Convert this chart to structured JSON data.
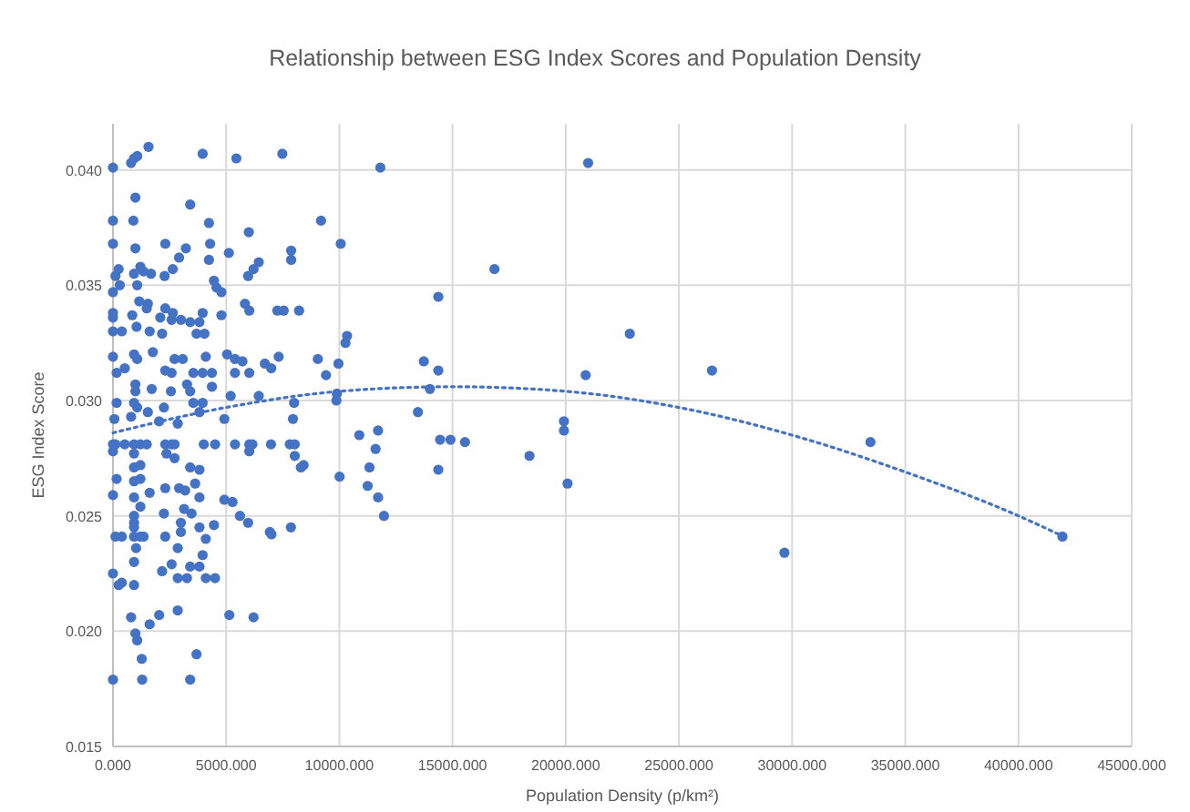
{
  "chart_data": {
    "type": "scatter",
    "title": "Relationship between ESG Index Scores and Population Density",
    "xlabel": "Population Density (p/km²)",
    "ylabel": "ESG Index Score",
    "xlim": [
      0,
      45000
    ],
    "ylim": [
      0.015,
      0.042
    ],
    "xticks": [
      {
        "value": 0,
        "label": "0.000"
      },
      {
        "value": 5000,
        "label": "5000.000"
      },
      {
        "value": 10000,
        "label": "10000.000"
      },
      {
        "value": 15000,
        "label": "15000.000"
      },
      {
        "value": 20000,
        "label": "20000.000"
      },
      {
        "value": 25000,
        "label": "25000.000"
      },
      {
        "value": 30000,
        "label": "30000.000"
      },
      {
        "value": 35000,
        "label": "35000.000"
      },
      {
        "value": 40000,
        "label": "40000.000"
      },
      {
        "value": 45000,
        "label": "45000.000"
      }
    ],
    "yticks": [
      {
        "value": 0.015,
        "label": "0.015"
      },
      {
        "value": 0.02,
        "label": "0.020"
      },
      {
        "value": 0.025,
        "label": "0.025"
      },
      {
        "value": 0.03,
        "label": "0.030"
      },
      {
        "value": 0.035,
        "label": "0.035"
      },
      {
        "value": 0.04,
        "label": "0.040"
      }
    ],
    "grid": true,
    "series": [
      {
        "color": "#4472c4",
        "marker": "circle",
        "x": [
          0,
          800,
          930,
          1070,
          1570,
          3960,
          5450,
          7480,
          990,
          3410,
          0,
          900,
          4240,
          9190,
          6000,
          0,
          2310,
          4290,
          10060,
          990,
          3220,
          5120,
          7870,
          7870,
          2920,
          4240,
          6440,
          250,
          2640,
          6210,
          1210,
          1350,
          930,
          1680,
          2280,
          5970,
          110,
          300,
          1070,
          0,
          4460,
          4570,
          4790,
          1160,
          1540,
          1490,
          2310,
          2640,
          5830,
          6020,
          7260,
          7540,
          8220,
          0,
          0,
          850,
          2090,
          2590,
          3000,
          3410,
          3820,
          4790,
          3960,
          1040,
          0,
          390,
          1620,
          2170,
          3690,
          4040,
          10340,
          0,
          930,
          1070,
          1760,
          2720,
          3080,
          4100,
          5040,
          5390,
          5720,
          6710,
          6990,
          7320,
          9050,
          9410,
          9960,
          160,
          520,
          2310,
          2590,
          3550,
          3960,
          4370,
          5390,
          6020,
          990,
          990,
          3270,
          3410,
          1710,
          2560,
          4370,
          5200,
          6440,
          9870,
          160,
          930,
          1070,
          2250,
          3960,
          3550,
          8000,
          7950,
          4920,
          3820,
          1540,
          800,
          60,
          2040,
          2860,
          0,
          110,
          520,
          930,
          1210,
          1490,
          2310,
          2590,
          2720,
          4010,
          4510,
          5390,
          6020,
          6160,
          6980,
          7810,
          8030,
          0,
          930,
          2360,
          2720,
          6020,
          8030,
          1210,
          930,
          3410,
          3820,
          8420,
          8300,
          160,
          930,
          1210,
          10010,
          2310,
          2920,
          3190,
          3630,
          1620,
          930,
          0,
          3820,
          4920,
          5280,
          1210,
          2250,
          3140,
          3470,
          930,
          930,
          5610,
          5970,
          3000,
          3820,
          4460,
          7860,
          930,
          110,
          390,
          930,
          1210,
          1350,
          2310,
          3000,
          6930,
          7000,
          4100,
          1020,
          2860,
          3960,
          930,
          2590,
          3410,
          3820,
          2170,
          0,
          2860,
          3270,
          4100,
          4510,
          250,
          390,
          930,
          800,
          2040,
          2860,
          1620,
          990,
          1070,
          5140,
          6210,
          3690,
          1270,
          0,
          1290,
          3410,
          11810,
          20990,
          16850,
          14370,
          10270,
          22830,
          13730,
          14370,
          20880,
          9890,
          14000,
          13470,
          19920,
          19920,
          10880,
          11710,
          11600,
          14450,
          14910,
          15550,
          18400,
          11330,
          14370,
          11250,
          20080,
          11710,
          11970,
          26460,
          29660,
          33460,
          41940
        ],
        "values": [
          0.0401,
          0.0403,
          0.0405,
          0.0406,
          0.041,
          0.0407,
          0.0405,
          0.0407,
          0.0388,
          0.0385,
          0.0378,
          0.0378,
          0.0377,
          0.0378,
          0.0373,
          0.0368,
          0.0368,
          0.0368,
          0.0368,
          0.0366,
          0.0366,
          0.0364,
          0.0365,
          0.0361,
          0.0362,
          0.0361,
          0.036,
          0.0357,
          0.0357,
          0.0357,
          0.0358,
          0.0356,
          0.0355,
          0.0355,
          0.0354,
          0.0354,
          0.0354,
          0.035,
          0.035,
          0.0347,
          0.0352,
          0.0349,
          0.0347,
          0.0343,
          0.0342,
          0.034,
          0.034,
          0.0338,
          0.0342,
          0.0339,
          0.0339,
          0.0339,
          0.0339,
          0.0338,
          0.0336,
          0.0337,
          0.0336,
          0.0335,
          0.0335,
          0.0334,
          0.0334,
          0.0337,
          0.0338,
          0.0332,
          0.033,
          0.033,
          0.033,
          0.0329,
          0.0329,
          0.0329,
          0.0328,
          0.0319,
          0.032,
          0.0318,
          0.0321,
          0.0318,
          0.0318,
          0.0319,
          0.032,
          0.0318,
          0.0317,
          0.0316,
          0.0314,
          0.0319,
          0.0318,
          0.0311,
          0.0316,
          0.0312,
          0.0314,
          0.0313,
          0.0312,
          0.0312,
          0.0312,
          0.0312,
          0.0312,
          0.0312,
          0.0307,
          0.0304,
          0.0307,
          0.0304,
          0.0305,
          0.0304,
          0.0306,
          0.0302,
          0.0302,
          0.03,
          0.0299,
          0.0299,
          0.0297,
          0.0297,
          0.0299,
          0.0299,
          0.0299,
          0.0292,
          0.0292,
          0.0295,
          0.0295,
          0.0293,
          0.0292,
          0.0291,
          0.029,
          0.0281,
          0.0281,
          0.0281,
          0.0281,
          0.0281,
          0.0281,
          0.0281,
          0.0281,
          0.0281,
          0.0281,
          0.0281,
          0.0281,
          0.0281,
          0.0281,
          0.0281,
          0.0281,
          0.0281,
          0.0278,
          0.0277,
          0.0277,
          0.0275,
          0.0278,
          0.0276,
          0.0272,
          0.0271,
          0.0271,
          0.027,
          0.0272,
          0.0271,
          0.0266,
          0.0265,
          0.0266,
          0.0267,
          0.0262,
          0.0262,
          0.0261,
          0.0264,
          0.026,
          0.0258,
          0.0259,
          0.0258,
          0.0257,
          0.0256,
          0.0254,
          0.0251,
          0.0253,
          0.0251,
          0.025,
          0.0247,
          0.025,
          0.0247,
          0.0247,
          0.0245,
          0.0246,
          0.0245,
          0.0245,
          0.0241,
          0.0241,
          0.0241,
          0.0241,
          0.0241,
          0.0241,
          0.0243,
          0.0243,
          0.0242,
          0.024,
          0.0236,
          0.0236,
          0.0233,
          0.023,
          0.0229,
          0.0228,
          0.0228,
          0.0226,
          0.0225,
          0.0223,
          0.0223,
          0.0223,
          0.0223,
          0.022,
          0.0221,
          0.022,
          0.0206,
          0.0207,
          0.0209,
          0.0203,
          0.0199,
          0.0196,
          0.0207,
          0.0206,
          0.019,
          0.0188,
          0.0179,
          0.0179,
          0.0179,
          0.0401,
          0.0403,
          0.0357,
          0.0345,
          0.0325,
          0.0329,
          0.0317,
          0.0313,
          0.0311,
          0.0303,
          0.0305,
          0.0295,
          0.0291,
          0.0287,
          0.0285,
          0.0287,
          0.0279,
          0.0283,
          0.0283,
          0.0282,
          0.0276,
          0.0271,
          0.027,
          0.0263,
          0.0264,
          0.0258,
          0.025,
          0.0313,
          0.0234,
          0.0282,
          0.0241
        ]
      },
      {
        "type": "line",
        "color": "#4472c4",
        "marker": "none",
        "line_style": "dotted",
        "x": [
          0,
          5000,
          10000,
          15000,
          20000,
          25000,
          30000,
          35000,
          40000,
          42000
        ],
        "values": [
          0.0286,
          0.0297,
          0.0304,
          0.0306,
          0.0304,
          0.0297,
          0.0285,
          0.0269,
          0.025,
          0.0241
        ]
      }
    ]
  }
}
